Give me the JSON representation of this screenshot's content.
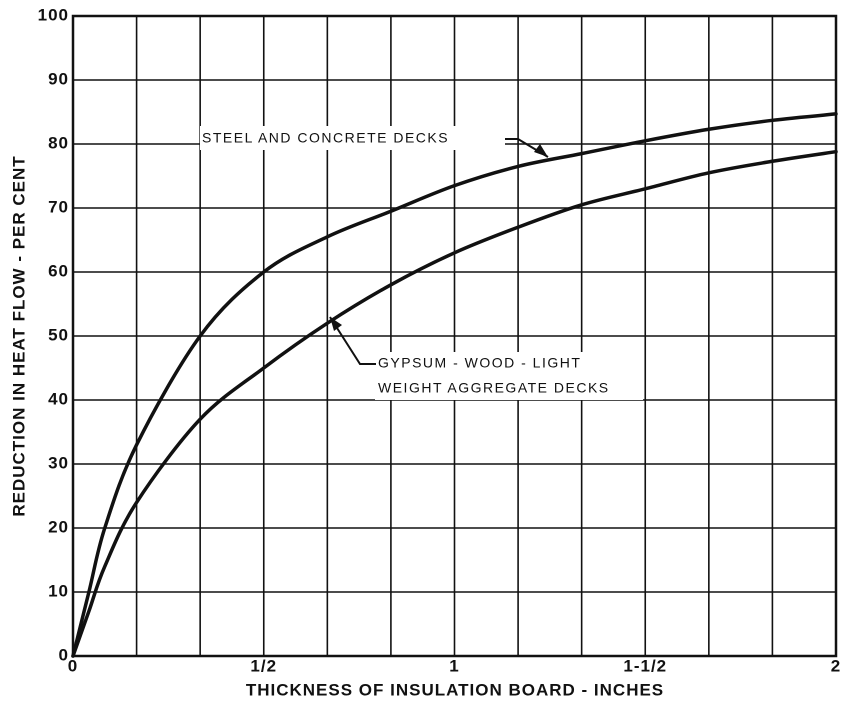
{
  "chart_data": {
    "type": "line",
    "x_label": "THICKNESS OF INSULATION BOARD - INCHES",
    "y_label": "REDUCTION IN HEAT FLOW - PER CENT",
    "x": [
      0,
      0.0417,
      0.0833,
      0.1667,
      0.3333,
      0.5,
      0.6667,
      0.8333,
      1,
      1.1667,
      1.3333,
      1.5,
      1.6667,
      1.8333,
      2
    ],
    "series": [
      {
        "name": "STEEL AND CONCRETE DECKS",
        "color": "#111111",
        "values": [
          0,
          10,
          20,
          33,
          50,
          60,
          65.5,
          69.5,
          73.5,
          76.5,
          78.5,
          80.5,
          82.3,
          83.7,
          84.7
        ]
      },
      {
        "name": "GYPSUM - WOOD - LIGHT WEIGHT AGGREGATE DECKS",
        "color": "#111111",
        "values": [
          0,
          7,
          14,
          24,
          37,
          45,
          52,
          58,
          63,
          67,
          70.5,
          73,
          75.5,
          77.3,
          78.8
        ]
      }
    ],
    "annotations": [
      {
        "text": "STEEL AND CONCRETE DECKS"
      },
      {
        "text": "GYPSUM - WOOD - LIGHT"
      },
      {
        "text": "WEIGHT AGGREGATE DECKS"
      }
    ],
    "xlim": [
      0,
      2
    ],
    "ylim": [
      0,
      100
    ],
    "xticks": [
      0,
      {
        "value": 0.5,
        "label": "1/2"
      },
      1,
      {
        "value": 1.5,
        "label": "1-1/2"
      },
      2
    ],
    "xgrid": [
      0.1667,
      0.3333,
      0.6667,
      0.8333,
      1.1667,
      1.3333,
      1.6667,
      1.8333
    ],
    "yticks": [
      0,
      10,
      20,
      30,
      40,
      50,
      60,
      70,
      80,
      90,
      100
    ],
    "grid": true
  }
}
